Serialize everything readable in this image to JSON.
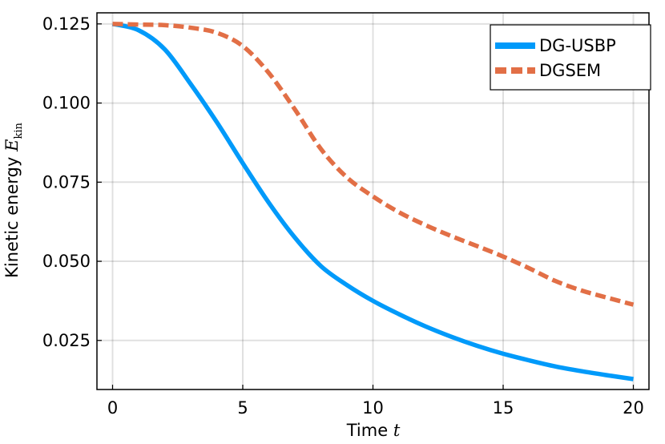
{
  "chart_data": {
    "type": "line",
    "xlabel": "Time",
    "xlabel_var": "t",
    "ylabel": "Kinetic energy",
    "ylabel_var": "E",
    "ylabel_sub": "kin",
    "xlim": [
      -0.6,
      20.6
    ],
    "ylim": [
      0.0095,
      0.1285
    ],
    "xticks": [
      0,
      5,
      10,
      15,
      20
    ],
    "xtick_labels": [
      "0",
      "5",
      "10",
      "15",
      "20"
    ],
    "yticks": [
      0.025,
      0.05,
      0.075,
      0.1,
      0.125
    ],
    "ytick_labels": [
      "0.025",
      "0.050",
      "0.075",
      "0.100",
      "0.125"
    ],
    "grid": true,
    "legend_position": "top-right",
    "series": [
      {
        "name": "DG-USBP",
        "color": "#009AFA",
        "style": "solid",
        "x": [
          0,
          1,
          2,
          3,
          4,
          5,
          6,
          7,
          8,
          9,
          10,
          11,
          12,
          13,
          14,
          15,
          16,
          17,
          18,
          19,
          20
        ],
        "y": [
          0.125,
          0.123,
          0.117,
          0.106,
          0.094,
          0.081,
          0.0685,
          0.0575,
          0.0485,
          0.0425,
          0.0375,
          0.0333,
          0.0295,
          0.0262,
          0.0233,
          0.0208,
          0.0187,
          0.0168,
          0.0153,
          0.014,
          0.0128
        ]
      },
      {
        "name": "DGSEM",
        "color": "#E26F46",
        "style": "dashed",
        "x": [
          0,
          1,
          2,
          3,
          4,
          5,
          6,
          7,
          8,
          9,
          10,
          11,
          12,
          13,
          14,
          15,
          16,
          17,
          18,
          19,
          20
        ],
        "y": [
          0.125,
          0.1248,
          0.1246,
          0.1238,
          0.1222,
          0.118,
          0.1095,
          0.098,
          0.0855,
          0.0765,
          0.0705,
          0.0655,
          0.0615,
          0.058,
          0.0548,
          0.0515,
          0.0478,
          0.0438,
          0.0408,
          0.0385,
          0.0363
        ]
      }
    ]
  }
}
